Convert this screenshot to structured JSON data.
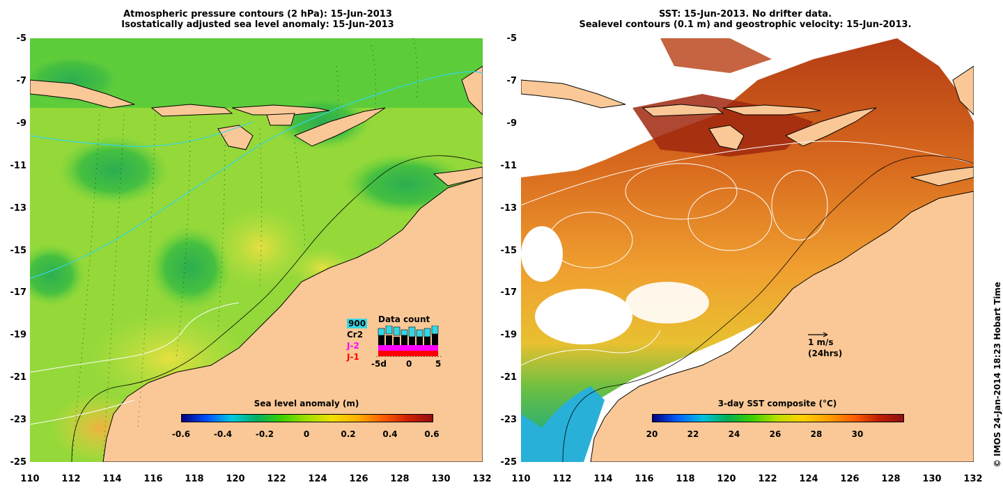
{
  "left_panel": {
    "title_line1": "Atmospheric pressure contours (2 hPa): 15-Jun-2013",
    "title_line2": "Isostatically adjusted sea level anomaly: 15-Jun-2013",
    "colorbar": {
      "title": "Sea level anomaly (m)",
      "ticks": [
        "-0.6",
        "-0.4",
        "-0.2",
        "0",
        "0.2",
        "0.4",
        "0.6"
      ]
    },
    "data_count": {
      "title": "Data count",
      "legend": [
        "900",
        "Cr2",
        "J-2",
        "J-1"
      ],
      "legend_colors": [
        "#33d6e6",
        "#000000",
        "#ff00ff",
        "#ff0000"
      ],
      "x_ticks": [
        "-5d",
        "0",
        "5"
      ]
    }
  },
  "right_panel": {
    "title_line1": "SST: 15-Jun-2013. No drifter data.",
    "title_line2": "Sealevel contours (0.1 m) and geostrophic velocity: 15-Jun-2013.",
    "colorbar": {
      "title": "3-day SST composite (°C)",
      "ticks": [
        "20",
        "22",
        "24",
        "26",
        "28",
        "30"
      ]
    },
    "velocity_scale": {
      "label": "1 m/s",
      "sublabel": "(24hrs)"
    }
  },
  "axes": {
    "y_ticks": [
      "-5",
      "-7",
      "-9",
      "-11",
      "-13",
      "-15",
      "-17",
      "-19",
      "-21",
      "-23",
      "-25"
    ],
    "x_ticks": [
      "110",
      "112",
      "114",
      "116",
      "118",
      "120",
      "122",
      "124",
      "126",
      "128",
      "130",
      "132"
    ]
  },
  "credit": "© IMOS 24-Jan-2014 18:23 Hobart Time",
  "colors": {
    "land": "#fac896",
    "sla_colorbar": [
      "#000080",
      "#0050ff",
      "#00c8e0",
      "#00b060",
      "#40d000",
      "#a0e000",
      "#f0e000",
      "#ffb000",
      "#ff6000",
      "#d02000",
      "#901010"
    ],
    "sst_colorbar": [
      "#000080",
      "#0060ff",
      "#00c0e0",
      "#00b050",
      "#40d000",
      "#c0e000",
      "#ffd000",
      "#ffa000",
      "#ff6000",
      "#c02000",
      "#901010"
    ]
  }
}
